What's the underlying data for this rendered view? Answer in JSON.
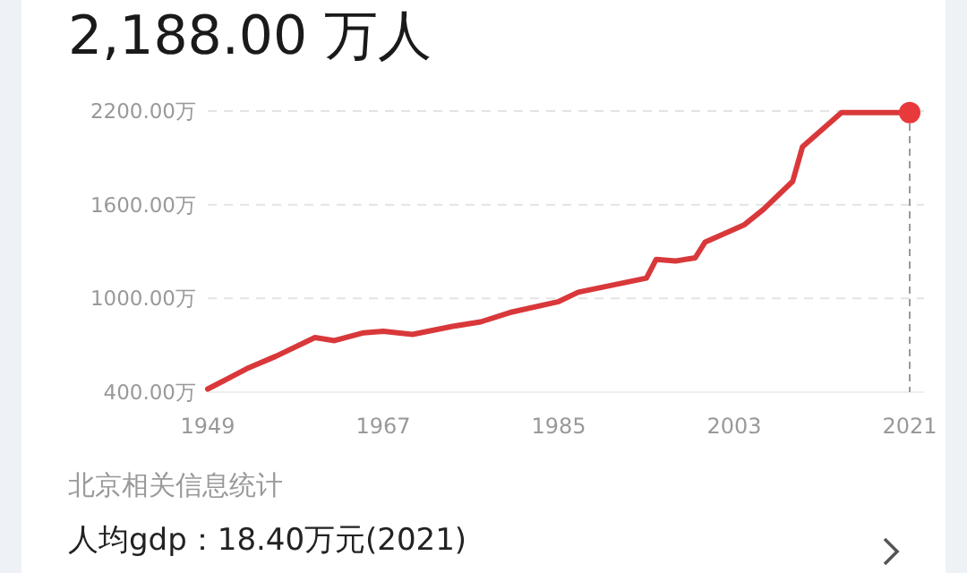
{
  "chart_data": {
    "type": "line",
    "title": "2,188.00 万人",
    "x": [
      1949,
      1953,
      1956,
      1960,
      1962,
      1965,
      1967,
      1970,
      1974,
      1977,
      1980,
      1985,
      1987,
      1994,
      1995,
      1997,
      1999,
      2000,
      2004,
      2006,
      2009,
      2010,
      2014,
      2021
    ],
    "series": [
      {
        "color": "#d9383a",
        "values": [
          420,
          550,
          630,
          750,
          730,
          780,
          790,
          770,
          820,
          850,
          910,
          980,
          1040,
          1130,
          1250,
          1240,
          1260,
          1360,
          1470,
          1570,
          1750,
          1970,
          2190,
          2190
        ]
      },
      {
        "type": "scatter",
        "marker": "circle",
        "color": "#e8393b",
        "x": [
          2021
        ],
        "values": [
          2190
        ]
      }
    ],
    "xlim": [
      1949,
      2021
    ],
    "xticks": [
      1949,
      1967,
      1985,
      2003,
      2021
    ],
    "ylim": [
      400,
      2200
    ],
    "yticks": [
      {
        "value": 400,
        "label": "400.00万"
      },
      {
        "value": 1000,
        "label": "1000.00万"
      },
      {
        "value": 1600,
        "label": "1600.00万"
      },
      {
        "value": 2200,
        "label": "2200.00万"
      }
    ],
    "grid": "y",
    "marker": "none",
    "line_style": "solid",
    "ref_lines": [
      {
        "axis": "x",
        "value": 2021,
        "color": "#999999",
        "line_style": "dashed"
      }
    ],
    "annotations": [
      "北京相关信息统计",
      "人均gdp：18.40万元(2021)"
    ]
  }
}
